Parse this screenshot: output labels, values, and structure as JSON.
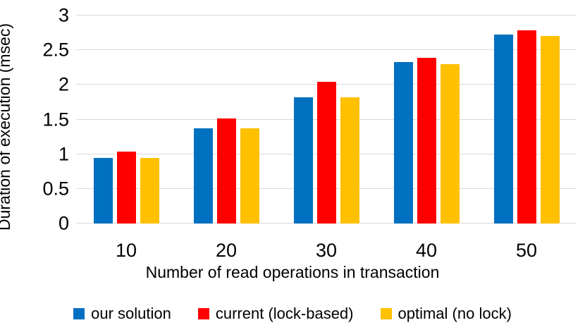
{
  "chart_data": {
    "type": "bar",
    "title": "",
    "ylabel": "Duration of execution (msec)",
    "xlabel": "Number of read operations in transaction",
    "categories": [
      "10",
      "20",
      "30",
      "40",
      "50"
    ],
    "series": [
      {
        "name": "our solution",
        "color": "#0070C0",
        "values": [
          0.95,
          1.37,
          1.82,
          2.33,
          2.73
        ]
      },
      {
        "name": "current (lock-based)",
        "color": "#FF0000",
        "values": [
          1.04,
          1.52,
          2.04,
          2.39,
          2.79
        ]
      },
      {
        "name": "optimal (no lock)",
        "color": "#FFC000",
        "values": [
          0.95,
          1.37,
          1.82,
          2.3,
          2.71
        ]
      }
    ],
    "ylim": [
      0,
      3
    ],
    "yticks": [
      0,
      0.5,
      1,
      1.5,
      2,
      2.5,
      3
    ],
    "ytick_labels": [
      "0",
      "0.5",
      "1",
      "1.5",
      "2",
      "2.5",
      "3"
    ],
    "grid": true,
    "legend_position": "bottom",
    "colors": {
      "gridline": "#D9D9D9",
      "text": "#000000",
      "background": "#FFFFFF"
    }
  }
}
